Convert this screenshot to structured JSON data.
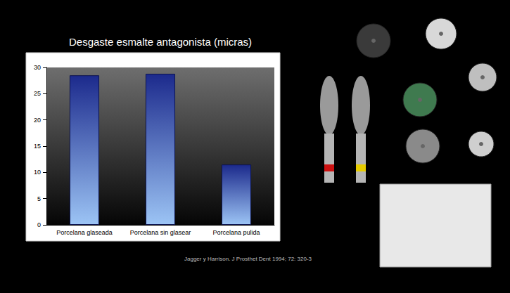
{
  "chart_data": {
    "type": "bar",
    "title": "Desgaste esmalte antagonista (micras)",
    "categories": [
      "Porcelana glaseada",
      "Porcelana sin glasear",
      "Porcelana pulida"
    ],
    "values": [
      28.5,
      28.8,
      11.5
    ],
    "color": "#1c2a8c",
    "ylim": [
      0,
      30
    ],
    "yticks": [
      0,
      5,
      10,
      15,
      20,
      25,
      30
    ],
    "grid": false,
    "annotations": [
      "Jagger y Harrison. J Prosthet Dent 1994; 72: 320-3"
    ]
  }
}
